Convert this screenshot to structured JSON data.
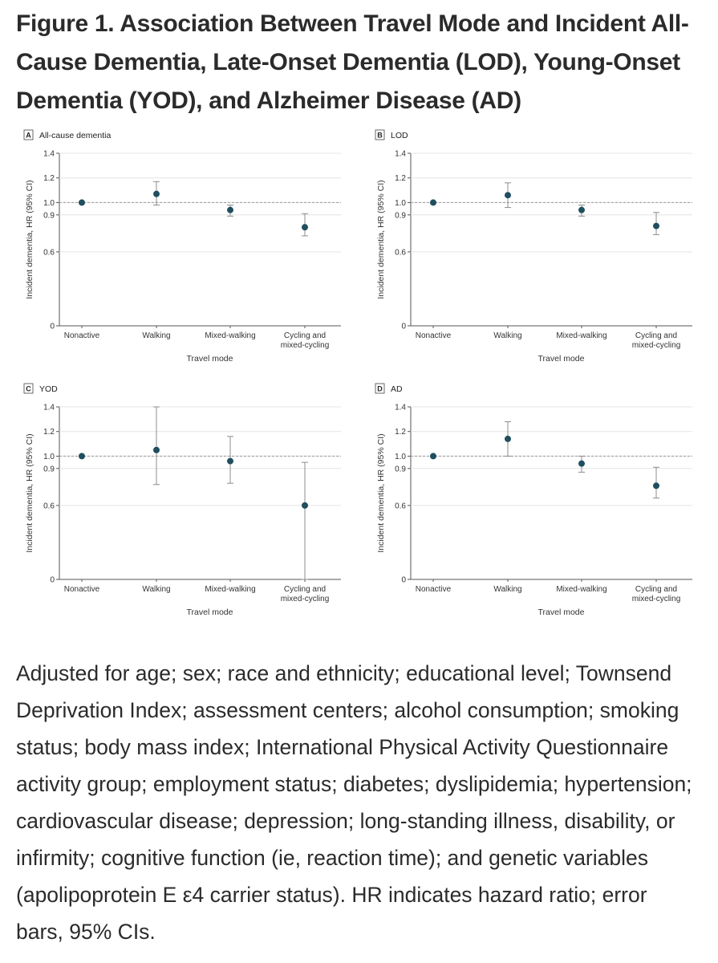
{
  "figure": {
    "title": "Figure 1.  Association Between Travel Mode and Incident All-Cause Dementia, Late-Onset Dementia (LOD), Young-Onset Dementia (YOD), and Alzheimer Disease (AD)",
    "caption": "Adjusted for age; sex; race and ethnicity; educational level; Townsend Deprivation Index; assessment centers; alcohol consumption; smoking status; body mass index; International Physical Activity Questionnaire activity group; employment status; diabetes; dyslipidemia; hypertension; cardiovascular disease; depression; long-standing illness, disability, or infirmity; cognitive function (ie, reaction time); and genetic variables (apolipoprotein E ε4 carrier status). HR indicates hazard ratio; error bars, 95% CIs."
  },
  "colors": {
    "marker": "#1f4e5f",
    "errorbar": "#8c8c8c",
    "refline": "#9a9a9a",
    "axis": "#555555"
  },
  "chart_data": [
    {
      "panel": "A",
      "title": "All-cause dementia",
      "type": "scatter",
      "categories": [
        "Nonactive",
        "Walking",
        "Mixed-walking",
        "Cycling and mixed-cycling"
      ],
      "values": [
        1.0,
        1.07,
        0.94,
        0.8
      ],
      "ci_lower": [
        1.0,
        0.98,
        0.89,
        0.73
      ],
      "ci_upper": [
        1.0,
        1.17,
        0.98,
        0.91
      ],
      "xlabel": "Travel mode",
      "ylabel": "Incident dementia, HR (95% CI)",
      "yticks": [
        0,
        0.6,
        0.9,
        1.0,
        1.2,
        1.4
      ],
      "ylim": [
        0,
        1.4
      ],
      "reference_line": 1.0
    },
    {
      "panel": "B",
      "title": "LOD",
      "type": "scatter",
      "categories": [
        "Nonactive",
        "Walking",
        "Mixed-walking",
        "Cycling and mixed-cycling"
      ],
      "values": [
        1.0,
        1.06,
        0.94,
        0.81
      ],
      "ci_lower": [
        1.0,
        0.96,
        0.89,
        0.74
      ],
      "ci_upper": [
        1.0,
        1.16,
        0.98,
        0.92
      ],
      "xlabel": "Travel mode",
      "ylabel": "Incident dementia, HR (95% CI)",
      "yticks": [
        0,
        0.6,
        0.9,
        1.0,
        1.2,
        1.4
      ],
      "ylim": [
        0,
        1.4
      ],
      "reference_line": 1.0
    },
    {
      "panel": "C",
      "title": "YOD",
      "type": "scatter",
      "categories": [
        "Nonactive",
        "Walking",
        "Mixed-walking",
        "Cycling and mixed-cycling"
      ],
      "values": [
        1.0,
        1.05,
        0.96,
        0.6
      ],
      "ci_lower": [
        1.0,
        0.77,
        0.78,
        0.0
      ],
      "ci_upper": [
        1.0,
        1.4,
        1.16,
        0.95
      ],
      "xlabel": "Travel mode",
      "ylabel": "Incident dementia, HR (95% CI)",
      "yticks": [
        0,
        0.6,
        0.9,
        1.0,
        1.2,
        1.4
      ],
      "ylim": [
        0,
        1.4
      ],
      "reference_line": 1.0
    },
    {
      "panel": "D",
      "title": "AD",
      "type": "scatter",
      "categories": [
        "Nonactive",
        "Walking",
        "Mixed-walking",
        "Cycling and mixed-cycling"
      ],
      "values": [
        1.0,
        1.14,
        0.94,
        0.76
      ],
      "ci_lower": [
        1.0,
        1.0,
        0.87,
        0.66
      ],
      "ci_upper": [
        1.0,
        1.28,
        1.0,
        0.91
      ],
      "xlabel": "Travel mode",
      "ylabel": "Incident dementia, HR (95% CI)",
      "yticks": [
        0,
        0.6,
        0.9,
        1.0,
        1.2,
        1.4
      ],
      "ylim": [
        0,
        1.4
      ],
      "reference_line": 1.0
    }
  ]
}
